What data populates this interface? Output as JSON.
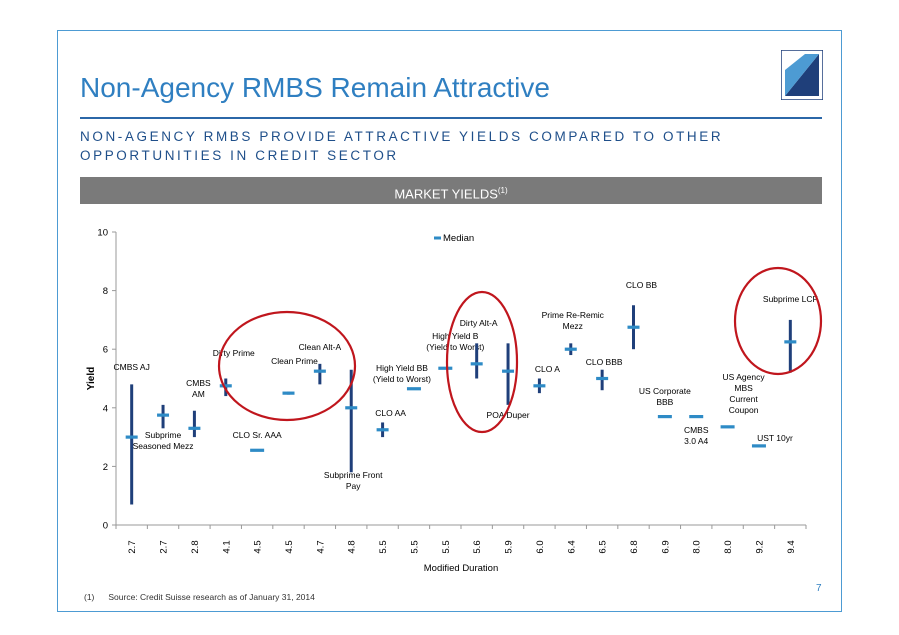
{
  "slide": {
    "title": "Non-Agency RMBS Remain Attractive",
    "subtitle": "NON-AGENCY RMBS PROVIDE ATTRACTIVE YIELDS COMPARED TO OTHER OPPORTUNITIES IN CREDIT SECTOR",
    "banner_text": "MARKET YIELDS",
    "banner_sup": "(1)",
    "footnote_marker": "(1)",
    "footnote_text": "Source: Credit Suisse research as of January 31, 2014",
    "page_number": "7"
  },
  "colors": {
    "accent": "#2f7fc1",
    "bar": "#1f3f7a",
    "median": "#2e8bc6",
    "highlight_circle": "#c0161d",
    "banner": "#7a7a7a"
  },
  "chart_data": {
    "type": "range",
    "xlabel": "Modified Duration",
    "ylabel": "Yield",
    "ylim": [
      0,
      10
    ],
    "yticks": [
      0,
      2,
      4,
      6,
      8,
      10
    ],
    "legend": {
      "label": "Median",
      "placement": "top-center"
    },
    "grid": false,
    "categories": [
      "2.7",
      "2.7",
      "2.8",
      "4.1",
      "4.5",
      "4.5",
      "4.7",
      "4.8",
      "5.5",
      "5.5",
      "5.5",
      "5.6",
      "5.9",
      "6.0",
      "6.4",
      "6.5",
      "6.8",
      "6.9",
      "8.0",
      "8.0",
      "9.2",
      "9.4"
    ],
    "points": [
      {
        "label": "CMBS AJ",
        "median": 3.0,
        "low": 0.7,
        "high": 4.8
      },
      {
        "label": "Subprime Seasoned Mezz",
        "median": 3.75,
        "low": 3.3,
        "high": 4.1
      },
      {
        "label": "CMBS AM",
        "median": 3.3,
        "low": 3.0,
        "high": 3.9
      },
      {
        "label": "Dirty Prime",
        "median": 4.75,
        "low": 4.4,
        "high": 5.0
      },
      {
        "label": "CLO Sr. AAA",
        "median": 2.55,
        "low": null,
        "high": null
      },
      {
        "label": "Clean Prime",
        "median": 4.5,
        "low": 4.45,
        "high": 4.55
      },
      {
        "label": "Clean Alt-A",
        "median": 5.25,
        "low": 4.8,
        "high": 5.5
      },
      {
        "label": "Subprime Front Pay",
        "median": 4.0,
        "low": 1.8,
        "high": 5.3
      },
      {
        "label": "CLO AA",
        "median": 3.25,
        "low": 3.0,
        "high": 3.5
      },
      {
        "label": "High Yield BB (Yield to Worst)",
        "median": 4.65,
        "low": null,
        "high": null
      },
      {
        "label": "High Yield B (Yield to Worst)",
        "median": 5.35,
        "low": null,
        "high": null
      },
      {
        "label": "Dirty Alt-A",
        "median": 5.5,
        "low": 5.0,
        "high": 6.2
      },
      {
        "label": "POA Duper",
        "median": 5.25,
        "low": 4.1,
        "high": 6.2
      },
      {
        "label": "CLO A",
        "median": 4.75,
        "low": 4.5,
        "high": 5.0
      },
      {
        "label": "Prime Re-Remic Mezz",
        "median": 6.0,
        "low": 5.8,
        "high": 6.2
      },
      {
        "label": "CLO BBB",
        "median": 5.0,
        "low": 4.6,
        "high": 5.3
      },
      {
        "label": "CLO BB",
        "median": 6.75,
        "low": 6.0,
        "high": 7.5
      },
      {
        "label": "US Corporate BBB",
        "median": 3.7,
        "low": null,
        "high": null
      },
      {
        "label": "CMBS 3.0 A4",
        "median": 3.7,
        "low": null,
        "high": null
      },
      {
        "label": "US Agency MBS Current Coupon",
        "median": 3.35,
        "low": null,
        "high": null
      },
      {
        "label": "UST 10yr",
        "median": 2.7,
        "low": null,
        "high": null
      },
      {
        "label": "Subprime LCF",
        "median": 6.25,
        "low": 5.2,
        "high": 7.0
      }
    ]
  }
}
